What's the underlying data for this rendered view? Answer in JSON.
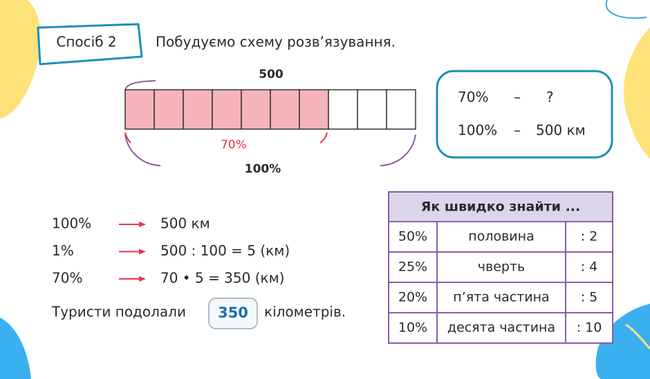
{
  "method": "Спосіб 2",
  "heading": "Побудуємо схему розв’язування.",
  "scheme": {
    "top": "500",
    "part": "70%",
    "whole": "100%"
  },
  "proportion": [
    {
      "left": "70%",
      "dash": "–",
      "right": "?"
    },
    {
      "left": "100%",
      "dash": "–",
      "right": "500 км"
    }
  ],
  "steps": [
    {
      "left": "100%",
      "right": "500 км"
    },
    {
      "left": "1%",
      "right": "500 : 100 = 5 (км)"
    },
    {
      "left": "70%",
      "right": "70 • 5 = 350 (км)"
    }
  ],
  "answer": {
    "before": "Туристи подолали",
    "value": "350",
    "after": "кілометрів."
  },
  "table": {
    "title": "Як швидко знайти ...",
    "rows": [
      [
        "50%",
        "половина",
        ": 2"
      ],
      [
        "25%",
        "чверть",
        ": 4"
      ],
      [
        "20%",
        "п’ята частина",
        ": 5"
      ],
      [
        "10%",
        "десята частина",
        ": 10"
      ]
    ]
  }
}
